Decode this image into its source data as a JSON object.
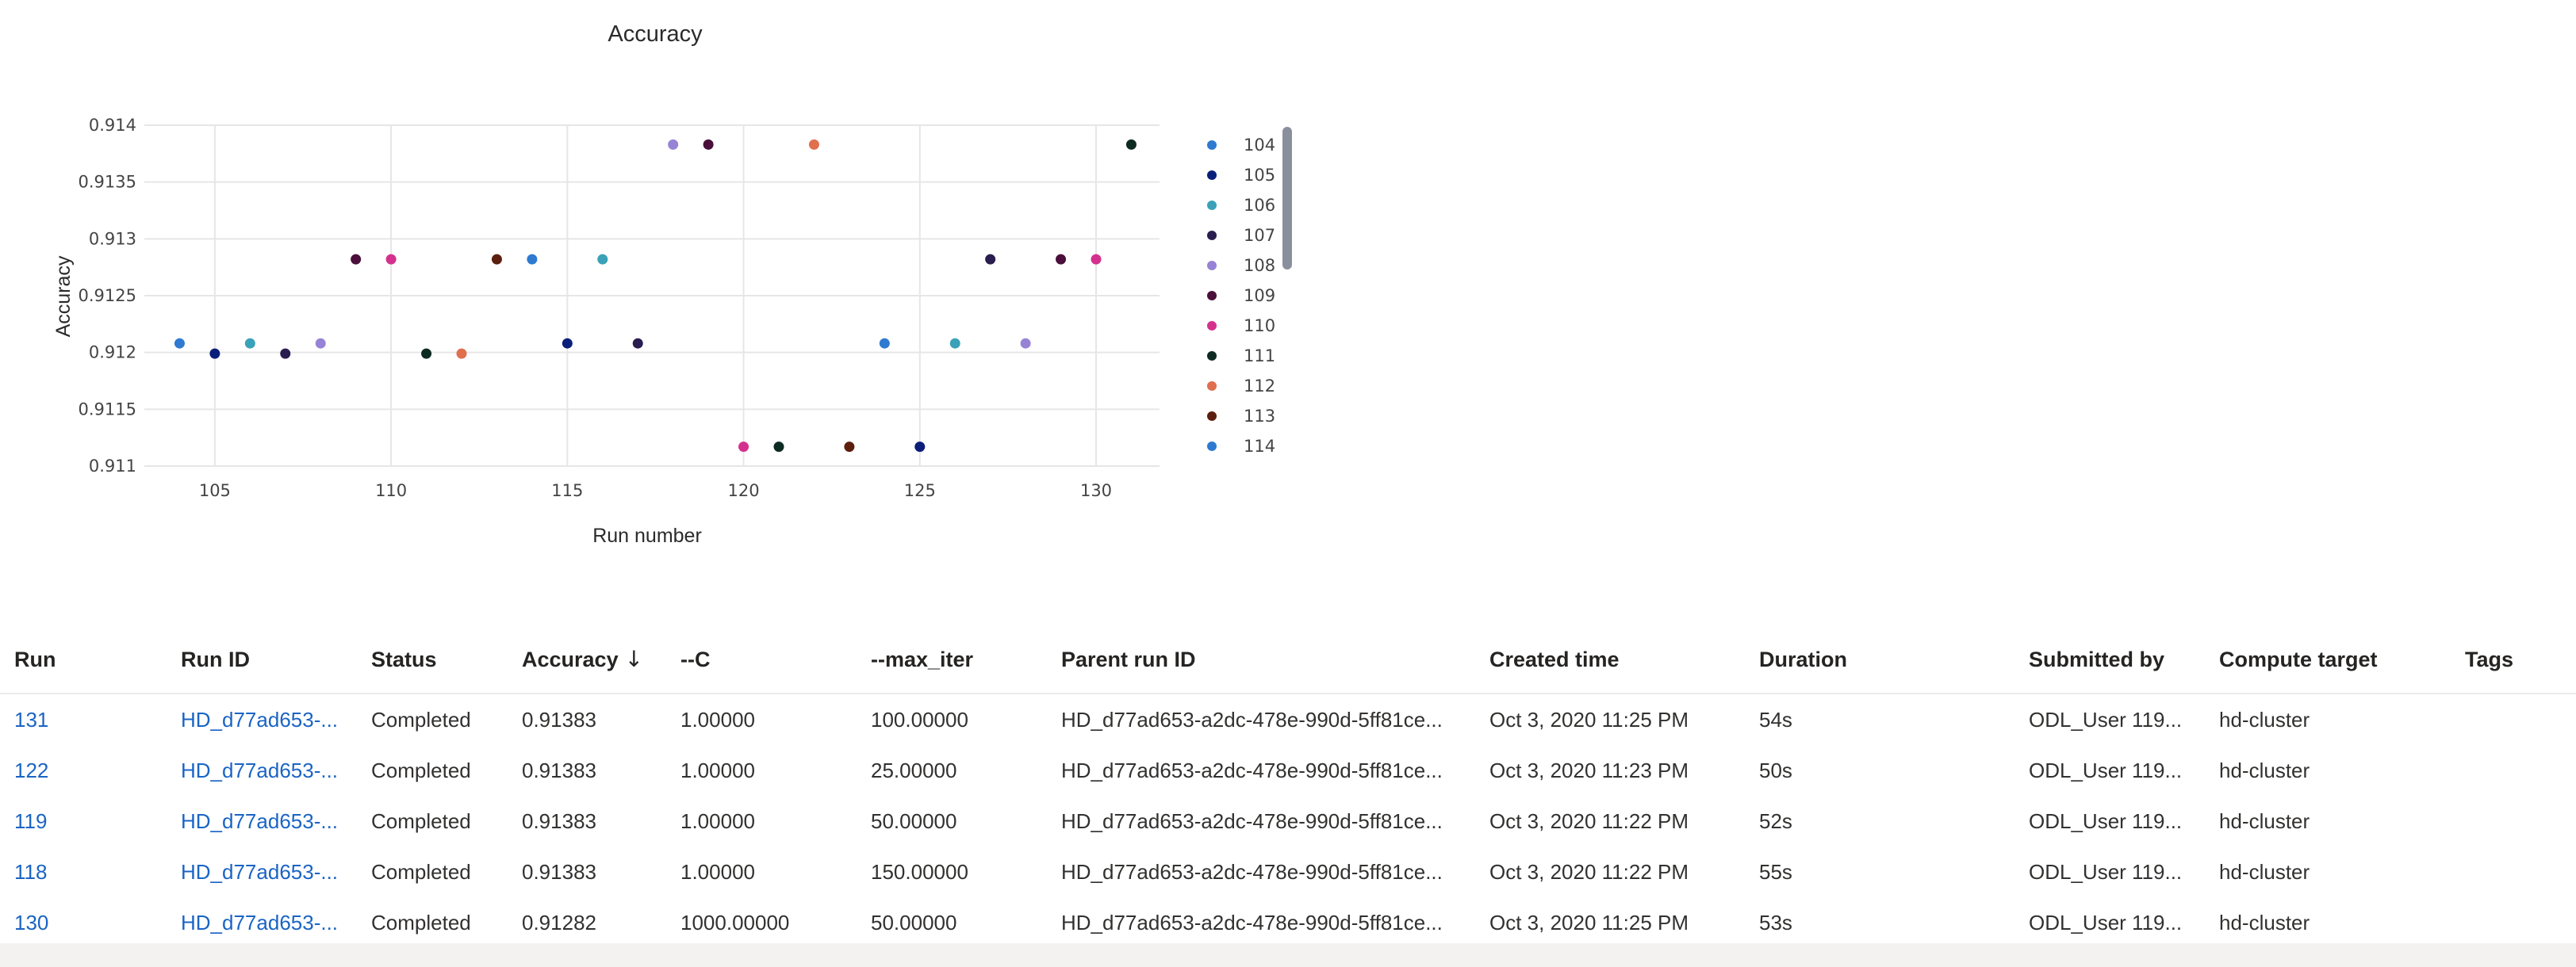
{
  "chart_data": {
    "type": "scatter",
    "title": "Accuracy",
    "xlabel": "Run number",
    "ylabel": "Accuracy",
    "xlim": [
      103,
      131.8
    ],
    "ylim": [
      0.911,
      0.914
    ],
    "x_ticks": [
      105,
      110,
      115,
      120,
      125,
      130
    ],
    "y_ticks": [
      0.911,
      0.9115,
      0.912,
      0.9125,
      0.913,
      0.9135,
      0.914
    ],
    "y_tick_labels": [
      "0.911",
      "0.9115",
      "0.912",
      "0.9125",
      "0.913",
      "0.9135",
      "0.914"
    ],
    "grid": true,
    "legend_position": "right",
    "points": [
      {
        "x": 104,
        "y": 0.91208,
        "color": "#2e7ad1"
      },
      {
        "x": 105,
        "y": 0.91199,
        "color": "#0b1f7a"
      },
      {
        "x": 106,
        "y": 0.91208,
        "color": "#3aa1b8"
      },
      {
        "x": 107,
        "y": 0.91199,
        "color": "#2a1d4f"
      },
      {
        "x": 108,
        "y": 0.91208,
        "color": "#9783d6"
      },
      {
        "x": 109,
        "y": 0.91282,
        "color": "#4a0f3a"
      },
      {
        "x": 110,
        "y": 0.91282,
        "color": "#d4318f"
      },
      {
        "x": 111,
        "y": 0.91199,
        "color": "#0d2b22"
      },
      {
        "x": 112,
        "y": 0.91199,
        "color": "#e06f4e"
      },
      {
        "x": 113,
        "y": 0.91282,
        "color": "#5c1f0e"
      },
      {
        "x": 114,
        "y": 0.91282,
        "color": "#2e7ad1"
      },
      {
        "x": 115,
        "y": 0.91208,
        "color": "#0b1f7a"
      },
      {
        "x": 116,
        "y": 0.91282,
        "color": "#3aa1b8"
      },
      {
        "x": 117,
        "y": 0.91208,
        "color": "#2a1d4f"
      },
      {
        "x": 118,
        "y": 0.91383,
        "color": "#9783d6"
      },
      {
        "x": 119,
        "y": 0.91383,
        "color": "#4a0f3a"
      },
      {
        "x": 120,
        "y": 0.91117,
        "color": "#d4318f"
      },
      {
        "x": 121,
        "y": 0.91117,
        "color": "#0d2b22"
      },
      {
        "x": 122,
        "y": 0.91383,
        "color": "#e06f4e"
      },
      {
        "x": 123,
        "y": 0.91117,
        "color": "#5c1f0e"
      },
      {
        "x": 124,
        "y": 0.91208,
        "color": "#2e7ad1"
      },
      {
        "x": 125,
        "y": 0.91117,
        "color": "#0b1f7a"
      },
      {
        "x": 126,
        "y": 0.91208,
        "color": "#3aa1b8"
      },
      {
        "x": 127,
        "y": 0.91282,
        "color": "#2a1d4f"
      },
      {
        "x": 128,
        "y": 0.91208,
        "color": "#9783d6"
      },
      {
        "x": 129,
        "y": 0.91282,
        "color": "#4a0f3a"
      },
      {
        "x": 130,
        "y": 0.91282,
        "color": "#d4318f"
      },
      {
        "x": 131,
        "y": 0.91383,
        "color": "#0d2b22"
      }
    ],
    "legend": [
      {
        "label": "104",
        "color": "#2e7ad1"
      },
      {
        "label": "105",
        "color": "#0b1f7a"
      },
      {
        "label": "106",
        "color": "#3aa1b8"
      },
      {
        "label": "107",
        "color": "#2a1d4f"
      },
      {
        "label": "108",
        "color": "#9783d6"
      },
      {
        "label": "109",
        "color": "#4a0f3a"
      },
      {
        "label": "110",
        "color": "#d4318f"
      },
      {
        "label": "111",
        "color": "#0d2b22"
      },
      {
        "label": "112",
        "color": "#e06f4e"
      },
      {
        "label": "113",
        "color": "#5c1f0e"
      },
      {
        "label": "114",
        "color": "#2e7ad1"
      }
    ],
    "legend_scroll_color": "#8a8f9e"
  },
  "table": {
    "headers": {
      "run": "Run",
      "run_id": "Run ID",
      "status": "Status",
      "accuracy": "Accuracy",
      "accuracy_sort_icon": "↓",
      "c": "--C",
      "max_iter": "--max_iter",
      "parent_run_id": "Parent run ID",
      "created_time": "Created time",
      "duration": "Duration",
      "submitted_by": "Submitted by",
      "compute_target": "Compute target",
      "tags": "Tags"
    },
    "rows": [
      {
        "run": "131",
        "run_id": "HD_d77ad653-...",
        "status": "Completed",
        "accuracy": "0.91383",
        "c": "1.00000",
        "max_iter": "100.00000",
        "parent_run_id": "HD_d77ad653-a2dc-478e-990d-5ff81ce...",
        "created_time": "Oct 3, 2020 11:25 PM",
        "duration": "54s",
        "submitted_by": "ODL_User 119...",
        "compute_target": "hd-cluster",
        "tags": ""
      },
      {
        "run": "122",
        "run_id": "HD_d77ad653-...",
        "status": "Completed",
        "accuracy": "0.91383",
        "c": "1.00000",
        "max_iter": "25.00000",
        "parent_run_id": "HD_d77ad653-a2dc-478e-990d-5ff81ce...",
        "created_time": "Oct 3, 2020 11:23 PM",
        "duration": "50s",
        "submitted_by": "ODL_User 119...",
        "compute_target": "hd-cluster",
        "tags": ""
      },
      {
        "run": "119",
        "run_id": "HD_d77ad653-...",
        "status": "Completed",
        "accuracy": "0.91383",
        "c": "1.00000",
        "max_iter": "50.00000",
        "parent_run_id": "HD_d77ad653-a2dc-478e-990d-5ff81ce...",
        "created_time": "Oct 3, 2020 11:22 PM",
        "duration": "52s",
        "submitted_by": "ODL_User 119...",
        "compute_target": "hd-cluster",
        "tags": ""
      },
      {
        "run": "118",
        "run_id": "HD_d77ad653-...",
        "status": "Completed",
        "accuracy": "0.91383",
        "c": "1.00000",
        "max_iter": "150.00000",
        "parent_run_id": "HD_d77ad653-a2dc-478e-990d-5ff81ce...",
        "created_time": "Oct 3, 2020 11:22 PM",
        "duration": "55s",
        "submitted_by": "ODL_User 119...",
        "compute_target": "hd-cluster",
        "tags": ""
      },
      {
        "run": "130",
        "run_id": "HD_d77ad653-...",
        "status": "Completed",
        "accuracy": "0.91282",
        "c": "1000.00000",
        "max_iter": "50.00000",
        "parent_run_id": "HD_d77ad653-a2dc-478e-990d-5ff81ce...",
        "created_time": "Oct 3, 2020 11:25 PM",
        "duration": "53s",
        "submitted_by": "ODL_User 119...",
        "compute_target": "hd-cluster",
        "tags": ""
      }
    ]
  }
}
